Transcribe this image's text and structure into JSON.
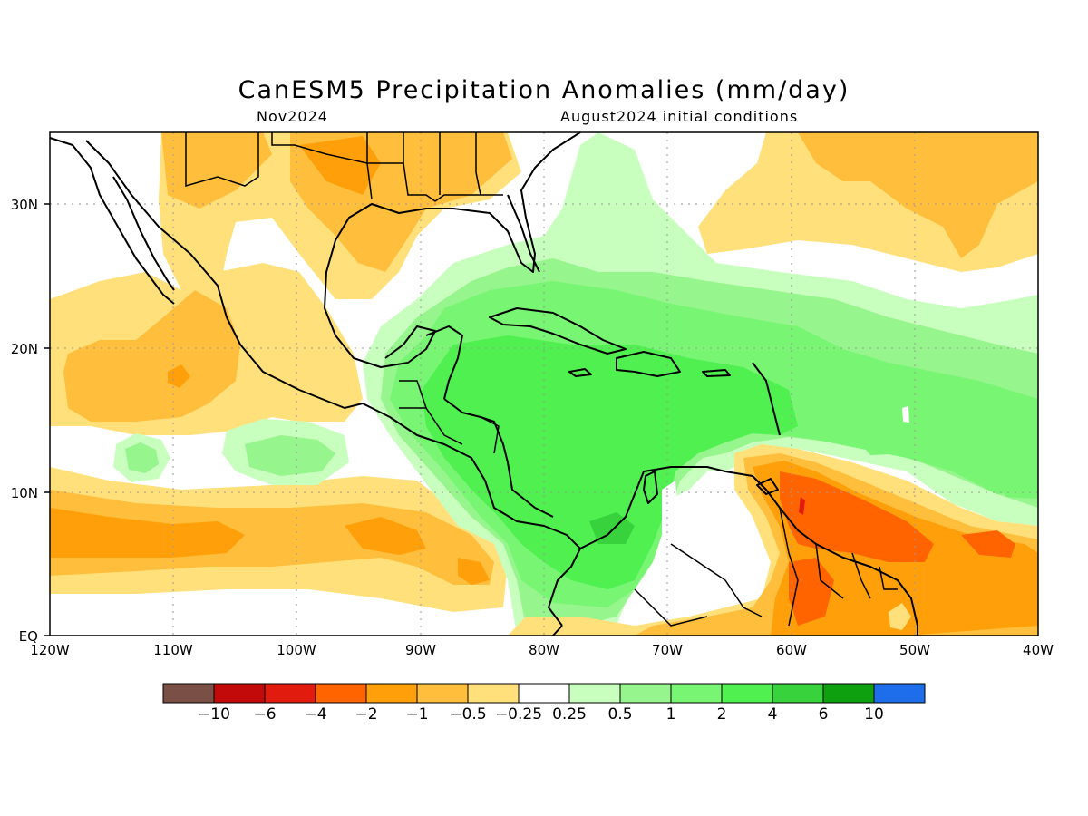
{
  "map": {
    "title": "CanESM5 Precipitation Anomalies (mm/day)",
    "valid_month": "Nov2024",
    "initial_conditions": "August2024 initial conditions",
    "lon_labels": [
      "120W",
      "110W",
      "100W",
      "90W",
      "80W",
      "70W",
      "60W",
      "50W",
      "40W"
    ],
    "lat_labels": [
      "30N",
      "20N",
      "10N",
      "EQ"
    ]
  },
  "colorbar": {
    "colors": [
      "#7a5046",
      "#c30a0a",
      "#e11c0f",
      "#ff6400",
      "#ffa00a",
      "#ffbe3c",
      "#ffe07a",
      "#ffffff",
      "#c8ffbe",
      "#96f58c",
      "#78f573",
      "#50f050",
      "#37d23c",
      "#0fa00f",
      "#1e6eeb"
    ],
    "labels": [
      "−10",
      "−6",
      "−4",
      "−2",
      "−1",
      "−0.5",
      "−0.25",
      "0.25",
      "0.5",
      "1",
      "2",
      "4",
      "6",
      "10"
    ]
  }
}
